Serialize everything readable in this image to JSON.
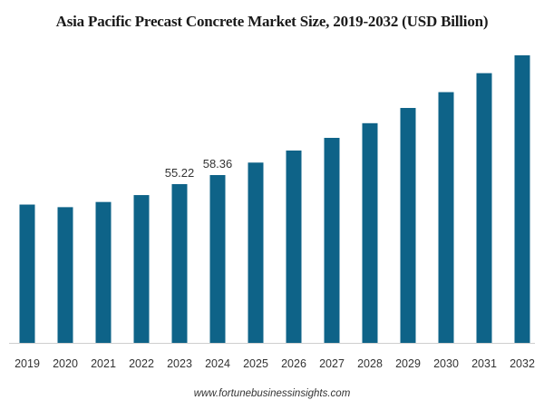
{
  "chart_data": {
    "type": "bar",
    "title": "Asia Pacific Precast Concrete Market Size, 2019-2032 (USD Billion)",
    "categories": [
      "2019",
      "2020",
      "2021",
      "2022",
      "2023",
      "2024",
      "2025",
      "2026",
      "2027",
      "2028",
      "2029",
      "2030",
      "2031",
      "2032"
    ],
    "values": [
      48.1,
      47.2,
      49.0,
      51.4,
      55.22,
      58.36,
      62.7,
      66.9,
      71.3,
      76.4,
      81.7,
      87.2,
      93.8,
      100.0
    ],
    "data_labels": {
      "2023": "55.22",
      "2024": "58.36"
    },
    "bar_color": "#0e6388",
    "ylim": [
      0,
      100
    ],
    "grid": false,
    "y_axis_visible": false
  },
  "source": "www.fortunebusinessinsights.com"
}
